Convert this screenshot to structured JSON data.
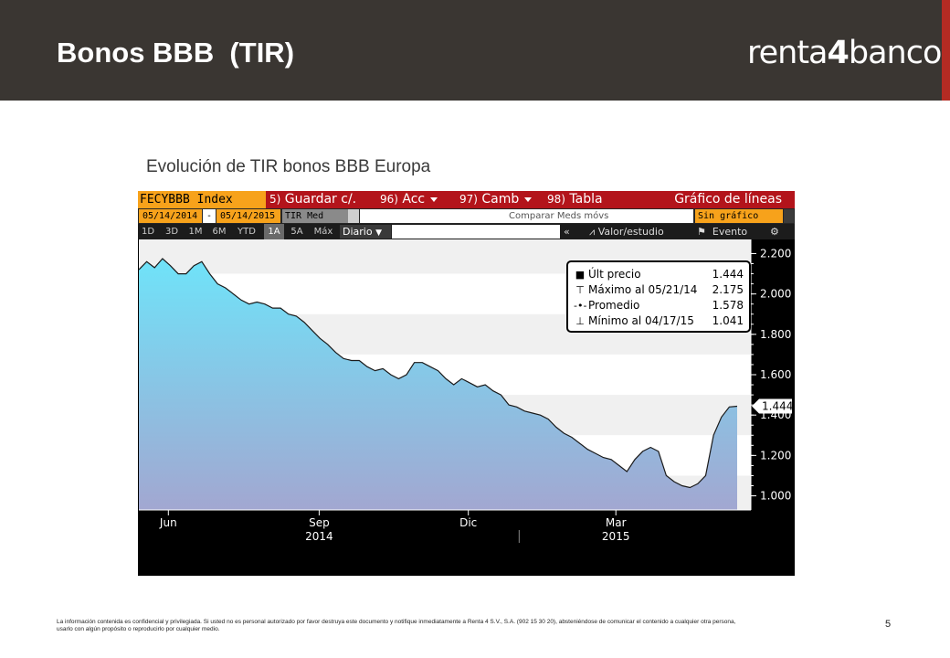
{
  "slide": {
    "title": "Bonos BBB  (TIR)",
    "logo_text": "renta4banco",
    "logo_parts": [
      "renta",
      "4",
      "banco"
    ],
    "subtitle": "Evolución de TIR bonos BBB Europa",
    "page_number": "5",
    "disclaimer": "La información contenida es confidencial y privilegiada. Si usted no es personal autorizado por favor destruya este documento y notifique inmediatamente a Renta 4 S.V., S.A. (902 15 30 20), absteniéndose de comunicar el contenido a cualquier otra persona, usarlo con algún propósito o reproducirlo por cualquier medio.",
    "colors": {
      "header_bg": "#3a3632",
      "accent_red": "#b32b23"
    }
  },
  "terminal": {
    "ticker": "FECYBBB Index",
    "menu": [
      {
        "num": "5)",
        "label": "Guardar c/."
      },
      {
        "num": "96)",
        "label": "Acc"
      },
      {
        "num": "97)",
        "label": "Camb"
      },
      {
        "num": "98)",
        "label": "Tabla"
      }
    ],
    "chart_type_label": "Gráfico de líneas",
    "date_from": "05/14/2014",
    "date_sep": "-",
    "date_to": "05/14/2015",
    "field": "TIR Med",
    "compare_label": "Comparar Meds móvs",
    "lower_chart": "Sin gráfico inferior",
    "periods": [
      "1D",
      "3D",
      "1M",
      "6M",
      "YTD",
      "1A",
      "5A",
      "Máx"
    ],
    "active_period": "1A",
    "frequency": "Diario",
    "chevrons": "«",
    "value_study": "Valor/estudio",
    "event": "Evento",
    "colors": {
      "ticker_bg": "#f7a21b",
      "menu_bar": "#b3141b"
    }
  },
  "chart_data": {
    "type": "area",
    "series": [
      {
        "values": [
          2.12,
          2.16,
          2.13,
          2.175,
          2.14,
          2.1,
          2.1,
          2.14,
          2.16,
          2.1,
          2.05,
          2.03,
          2.0,
          1.97,
          1.95,
          1.96,
          1.95,
          1.93,
          1.93,
          1.9,
          1.89,
          1.86,
          1.82,
          1.78,
          1.75,
          1.71,
          1.68,
          1.67,
          1.67,
          1.64,
          1.62,
          1.63,
          1.6,
          1.58,
          1.6,
          1.66,
          1.66,
          1.64,
          1.62,
          1.58,
          1.55,
          1.58,
          1.56,
          1.54,
          1.55,
          1.52,
          1.5,
          1.45,
          1.44,
          1.42,
          1.41,
          1.4,
          1.38,
          1.34,
          1.31,
          1.29,
          1.26,
          1.23,
          1.21,
          1.19,
          1.18,
          1.15,
          1.12,
          1.18,
          1.22,
          1.24,
          1.22,
          1.1,
          1.07,
          1.05,
          1.041,
          1.06,
          1.1,
          1.3,
          1.39,
          1.44,
          1.444
        ]
      }
    ],
    "x_range": [
      "2014-05-14",
      "2015-05-14"
    ],
    "x_ticks": [
      {
        "label": "Jun",
        "date": "2014-06-01"
      },
      {
        "label": "Sep",
        "date": "2014-09-01"
      },
      {
        "label": "Dic",
        "date": "2014-12-01"
      },
      {
        "label": "Mar",
        "date": "2015-03-01"
      }
    ],
    "x_year_labels": [
      {
        "label": "2014",
        "date": "2014-09-01"
      },
      {
        "label": "2015",
        "date": "2015-03-01"
      }
    ],
    "ylim": [
      0.93,
      2.27
    ],
    "y_ticks": [
      "1.000",
      "1.200",
      "1.400",
      "1.600",
      "1.800",
      "2.000",
      "2.200"
    ],
    "last_label": "1.444",
    "grid": false,
    "legend": {
      "position": "top-right",
      "rows": [
        {
          "icon": "square",
          "label": "Últ precio",
          "value": "1.444"
        },
        {
          "icon": "max",
          "label": "Máximo al 05/21/14",
          "value": "2.175"
        },
        {
          "icon": "avg",
          "label": "Promedio",
          "value": "1.578"
        },
        {
          "icon": "min",
          "label": "Mínimo al 04/17/15",
          "value": "1.041"
        }
      ]
    },
    "colors": {
      "fill_top": "#6fe3f9",
      "fill_bottom": "#a2a7d1",
      "line": "#1a1a1a"
    }
  }
}
